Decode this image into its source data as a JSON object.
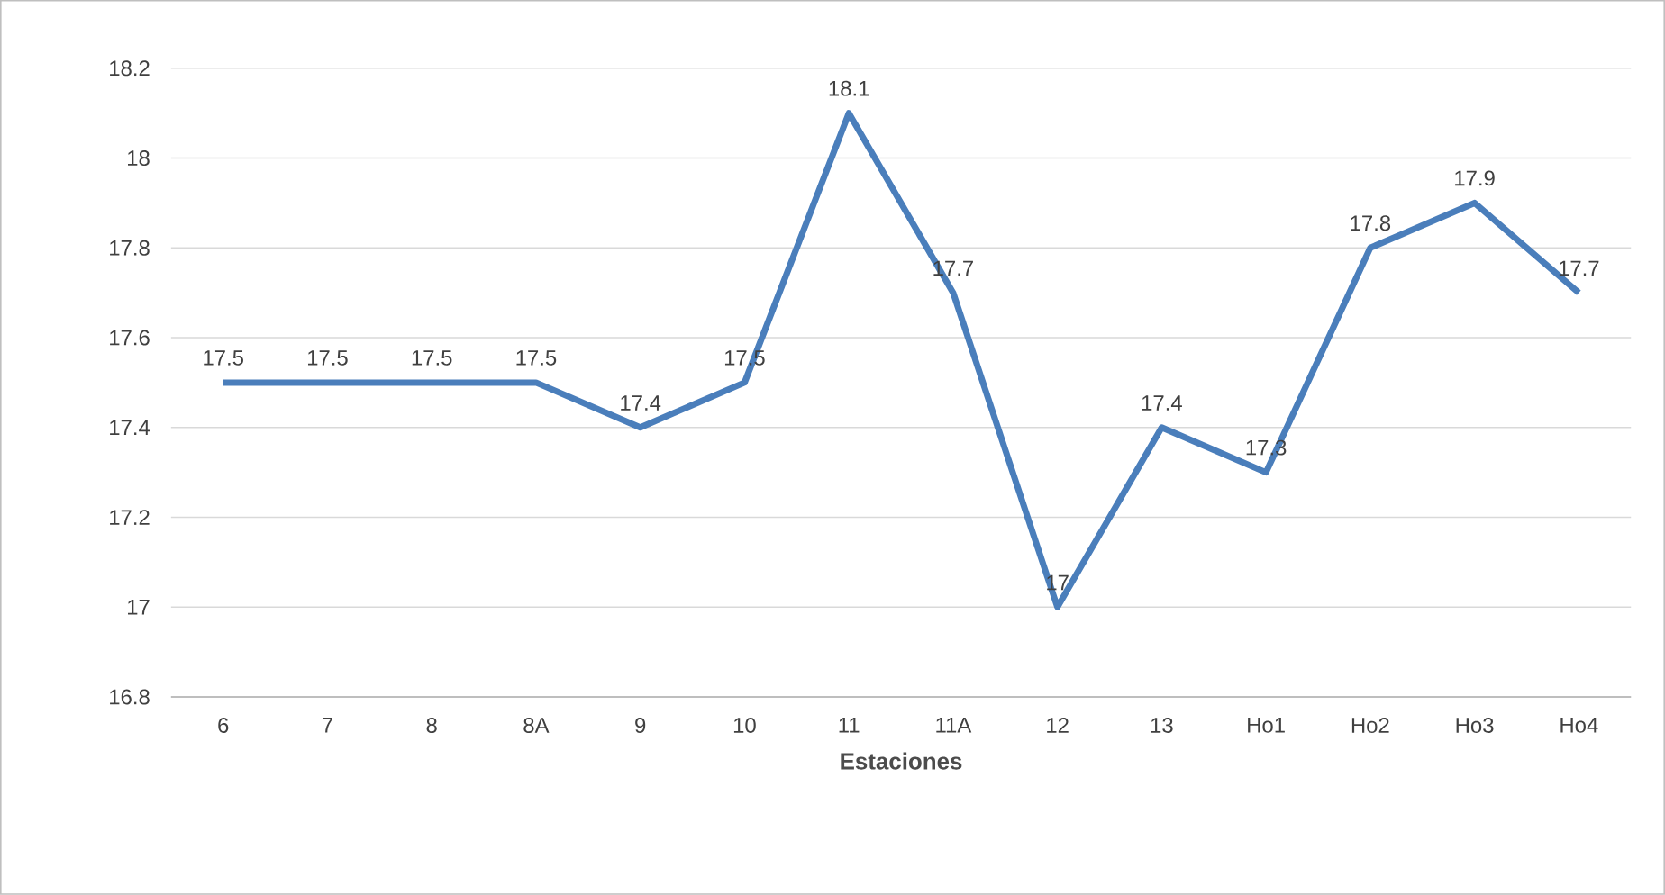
{
  "chart_data": {
    "type": "line",
    "xlabel": "Estaciones",
    "categories": [
      "6",
      "7",
      "8",
      "8A",
      "9",
      "10",
      "11",
      "11A",
      "12",
      "13",
      "Ho1",
      "Ho2",
      "Ho3",
      "Ho4"
    ],
    "series": [
      {
        "color": "#4a7ebb",
        "values": [
          17.5,
          17.5,
          17.5,
          17.5,
          17.4,
          17.5,
          18.1,
          17.7,
          17,
          17.4,
          17.3,
          17.8,
          17.9,
          17.7
        ]
      }
    ],
    "ylim": [
      16.8,
      18.2
    ],
    "yticks": [
      16.8,
      17,
      17.2,
      17.4,
      17.6,
      17.8,
      18,
      18.2
    ],
    "grid": "y",
    "data_labels": true
  }
}
